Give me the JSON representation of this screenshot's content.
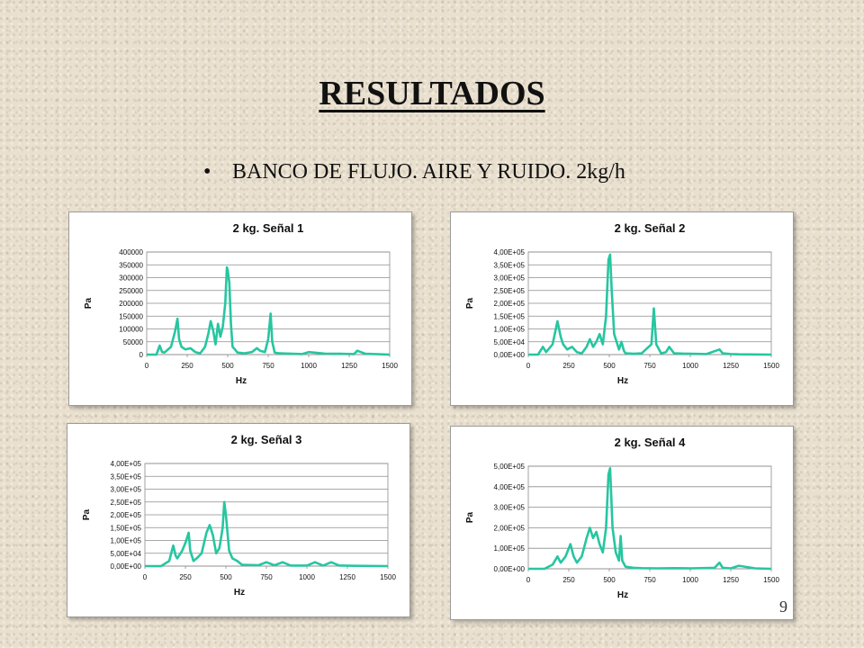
{
  "slide": {
    "title": "RESULTADOS",
    "bullet": "BANCO DE FLUJO. AIRE Y RUIDO. 2kg/h",
    "page_number": "9"
  },
  "colors": {
    "series": "#26c6a0",
    "grid": "#8c8c8c",
    "text": "#111111"
  },
  "chart_data": [
    {
      "type": "line",
      "title": "2 kg. Señal 1",
      "xlabel": "Hz",
      "ylabel": "Pa",
      "xlim": [
        0,
        1500
      ],
      "ylim": [
        0,
        400000
      ],
      "xticks": [
        "0",
        "250",
        "500",
        "750",
        "1000",
        "1250",
        "1500"
      ],
      "yticks": [
        "0",
        "50000",
        "100000",
        "150000",
        "200000",
        "250000",
        "300000",
        "350000",
        "400000"
      ],
      "grid": true,
      "legend": "none",
      "series": [
        {
          "x": [
            0,
            60,
            80,
            95,
            110,
            150,
            175,
            190,
            200,
            215,
            240,
            270,
            300,
            330,
            360,
            380,
            395,
            410,
            425,
            440,
            455,
            470,
            485,
            495,
            500,
            510,
            520,
            530,
            545,
            560,
            600,
            650,
            680,
            700,
            730,
            750,
            765,
            775,
            790,
            820,
            900,
            960,
            1000,
            1100,
            1200,
            1280,
            1300,
            1350,
            1500
          ],
          "y": [
            0,
            0,
            35000,
            10000,
            8000,
            30000,
            90000,
            140000,
            60000,
            30000,
            20000,
            25000,
            10000,
            5000,
            30000,
            80000,
            130000,
            95000,
            40000,
            120000,
            70000,
            110000,
            200000,
            340000,
            330000,
            280000,
            120000,
            30000,
            20000,
            8000,
            5000,
            10000,
            25000,
            15000,
            10000,
            60000,
            160000,
            50000,
            8000,
            5000,
            3000,
            2000,
            10000,
            4000,
            3000,
            2000,
            15000,
            3000,
            0
          ]
        }
      ]
    },
    {
      "type": "line",
      "title": "2 kg. Señal 2",
      "xlabel": "Hz",
      "ylabel": "Pa",
      "xlim": [
        0,
        1500
      ],
      "ylim": [
        0,
        400000
      ],
      "xticks": [
        "0",
        "250",
        "500",
        "750",
        "1000",
        "1250",
        "1500"
      ],
      "yticks": [
        "0,00E+00",
        "5,00E+04",
        "1,00E+05",
        "1,50E+05",
        "2,00E+05",
        "2,50E+05",
        "3,00E+05",
        "3,50E+05",
        "4,00E+05"
      ],
      "grid": true,
      "legend": "none",
      "series": [
        {
          "x": [
            0,
            60,
            90,
            110,
            150,
            180,
            200,
            215,
            240,
            270,
            300,
            330,
            360,
            380,
            400,
            420,
            440,
            460,
            480,
            495,
            505,
            515,
            530,
            560,
            575,
            590,
            600,
            650,
            700,
            760,
            775,
            790,
            820,
            850,
            870,
            900,
            1000,
            1100,
            1180,
            1200,
            1250,
            1300,
            1500
          ],
          "y": [
            0,
            0,
            30000,
            10000,
            40000,
            130000,
            70000,
            40000,
            20000,
            30000,
            10000,
            5000,
            30000,
            60000,
            30000,
            50000,
            80000,
            40000,
            150000,
            370000,
            390000,
            250000,
            80000,
            20000,
            50000,
            15000,
            5000,
            3000,
            5000,
            40000,
            180000,
            40000,
            5000,
            10000,
            30000,
            5000,
            3000,
            2000,
            20000,
            5000,
            2000,
            1000,
            0
          ]
        }
      ]
    },
    {
      "type": "line",
      "title": "2 kg. Señal 3",
      "xlabel": "Hz",
      "ylabel": "Pa",
      "xlim": [
        0,
        1500
      ],
      "ylim": [
        0,
        400000
      ],
      "xticks": [
        "0",
        "250",
        "500",
        "750",
        "1000",
        "1250",
        "1500"
      ],
      "yticks": [
        "0,00E+00",
        "5,00E+04",
        "1,00E+05",
        "1,50E+05",
        "2,00E+05",
        "2,50E+05",
        "3,00E+05",
        "3,50E+05",
        "4,00E+05"
      ],
      "grid": true,
      "legend": "none",
      "series": [
        {
          "x": [
            0,
            100,
            150,
            175,
            190,
            200,
            230,
            250,
            270,
            280,
            300,
            320,
            350,
            380,
            400,
            420,
            440,
            460,
            480,
            490,
            500,
            520,
            540,
            570,
            600,
            700,
            750,
            800,
            850,
            900,
            1000,
            1050,
            1100,
            1150,
            1200,
            1300,
            1500
          ],
          "y": [
            0,
            0,
            20000,
            80000,
            40000,
            30000,
            60000,
            90000,
            130000,
            60000,
            20000,
            30000,
            50000,
            130000,
            160000,
            120000,
            50000,
            70000,
            150000,
            250000,
            200000,
            60000,
            30000,
            20000,
            5000,
            3000,
            15000,
            3000,
            15000,
            2000,
            2000,
            15000,
            2000,
            15000,
            2000,
            1000,
            0
          ]
        }
      ]
    },
    {
      "type": "line",
      "title": "2 kg. Señal 4",
      "xlabel": "Hz",
      "ylabel": "Pa",
      "xlim": [
        0,
        1500
      ],
      "ylim": [
        0,
        500000
      ],
      "xticks": [
        "0",
        "250",
        "500",
        "750",
        "1000",
        "1250",
        "1500"
      ],
      "yticks": [
        "0,00E+00",
        "1,00E+05",
        "2,00E+05",
        "3,00E+05",
        "4,00E+05",
        "5,00E+05"
      ],
      "grid": true,
      "legend": "none",
      "series": [
        {
          "x": [
            0,
            100,
            150,
            180,
            200,
            230,
            260,
            280,
            300,
            330,
            360,
            380,
            400,
            420,
            440,
            460,
            480,
            495,
            505,
            520,
            540,
            560,
            570,
            580,
            600,
            650,
            700,
            800,
            900,
            1000,
            1150,
            1180,
            1200,
            1250,
            1300,
            1400,
            1500
          ],
          "y": [
            0,
            0,
            20000,
            60000,
            30000,
            60000,
            120000,
            60000,
            30000,
            60000,
            150000,
            200000,
            150000,
            180000,
            120000,
            80000,
            200000,
            460000,
            490000,
            200000,
            80000,
            40000,
            160000,
            40000,
            10000,
            5000,
            3000,
            2000,
            3000,
            2000,
            5000,
            30000,
            5000,
            2000,
            15000,
            2000,
            0
          ]
        }
      ]
    }
  ]
}
